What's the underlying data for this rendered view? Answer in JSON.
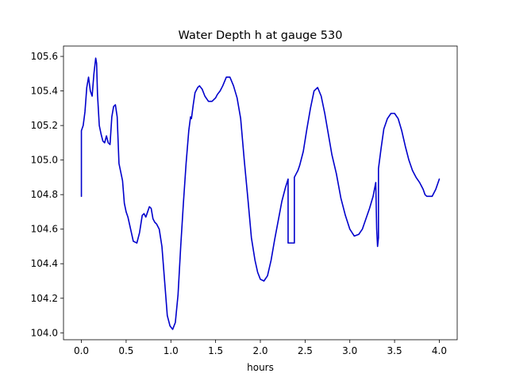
{
  "chart_data": {
    "type": "line",
    "title": "Water Depth h at gauge 530",
    "xlabel": "hours",
    "ylabel": "",
    "xlim": [
      -0.2,
      4.2
    ],
    "ylim": [
      103.96,
      105.66
    ],
    "xticks": [
      "0.0",
      "0.5",
      "1.0",
      "1.5",
      "2.0",
      "2.5",
      "3.0",
      "3.5",
      "4.0"
    ],
    "yticks": [
      "104.0",
      "104.2",
      "104.4",
      "104.6",
      "104.8",
      "105.0",
      "105.2",
      "105.4",
      "105.6"
    ],
    "grid": false,
    "legend": "none",
    "series": [
      {
        "color": "#0000cc",
        "x": [
          0.0,
          0.0,
          0.0,
          0.02,
          0.04,
          0.06,
          0.08,
          0.1,
          0.12,
          0.14,
          0.16,
          0.17,
          0.18,
          0.2,
          0.22,
          0.24,
          0.26,
          0.28,
          0.3,
          0.32,
          0.34,
          0.36,
          0.38,
          0.4,
          0.42,
          0.44,
          0.46,
          0.48,
          0.5,
          0.52,
          0.55,
          0.58,
          0.62,
          0.65,
          0.68,
          0.7,
          0.72,
          0.74,
          0.76,
          0.78,
          0.8,
          0.82,
          0.84,
          0.87,
          0.9,
          0.93,
          0.96,
          0.99,
          1.02,
          1.05,
          1.08,
          1.11,
          1.14,
          1.17,
          1.2,
          1.22,
          1.23,
          1.25,
          1.27,
          1.3,
          1.32,
          1.35,
          1.38,
          1.42,
          1.46,
          1.5,
          1.52,
          1.55,
          1.58,
          1.62,
          1.66,
          1.7,
          1.74,
          1.78,
          1.82,
          1.86,
          1.9,
          1.94,
          1.97,
          2.0,
          2.04,
          2.08,
          2.12,
          2.16,
          2.2,
          2.24,
          2.28,
          2.31,
          2.31,
          2.34,
          2.37,
          2.38,
          2.38,
          2.4,
          2.42,
          2.44,
          2.48,
          2.52,
          2.56,
          2.6,
          2.64,
          2.68,
          2.72,
          2.76,
          2.8,
          2.85,
          2.9,
          2.95,
          3.0,
          3.05,
          3.1,
          3.14,
          3.18,
          3.22,
          3.26,
          3.29,
          3.3,
          3.31,
          3.32,
          3.32,
          3.35,
          3.38,
          3.42,
          3.46,
          3.5,
          3.54,
          3.58,
          3.62,
          3.66,
          3.7,
          3.74,
          3.78,
          3.8,
          3.82,
          3.84,
          3.86,
          3.88,
          3.92,
          3.96,
          4.0
        ],
        "y": [
          104.79,
          104.95,
          105.17,
          105.2,
          105.28,
          105.42,
          105.48,
          105.4,
          105.37,
          105.5,
          105.59,
          105.56,
          105.38,
          105.2,
          105.15,
          105.11,
          105.1,
          105.14,
          105.1,
          105.09,
          105.25,
          105.31,
          105.32,
          105.25,
          104.98,
          104.93,
          104.88,
          104.75,
          104.7,
          104.67,
          104.6,
          104.53,
          104.52,
          104.58,
          104.68,
          104.69,
          104.67,
          104.7,
          104.73,
          104.72,
          104.66,
          104.64,
          104.63,
          104.6,
          104.5,
          104.3,
          104.1,
          104.04,
          104.02,
          104.06,
          104.22,
          104.5,
          104.75,
          104.98,
          105.17,
          105.25,
          105.24,
          105.32,
          105.39,
          105.42,
          105.43,
          105.41,
          105.37,
          105.34,
          105.34,
          105.36,
          105.38,
          105.4,
          105.43,
          105.48,
          105.48,
          105.43,
          105.36,
          105.24,
          105.0,
          104.78,
          104.55,
          104.42,
          104.35,
          104.31,
          104.3,
          104.33,
          104.42,
          104.54,
          104.65,
          104.76,
          104.84,
          104.89,
          104.52,
          104.52,
          104.52,
          104.52,
          104.9,
          104.92,
          104.94,
          104.97,
          105.05,
          105.18,
          105.3,
          105.4,
          105.42,
          105.37,
          105.27,
          105.15,
          105.03,
          104.92,
          104.78,
          104.68,
          104.6,
          104.56,
          104.57,
          104.6,
          104.66,
          104.72,
          104.79,
          104.87,
          104.6,
          104.5,
          104.55,
          104.95,
          105.07,
          105.18,
          105.24,
          105.27,
          105.27,
          105.24,
          105.17,
          105.08,
          105.0,
          104.94,
          104.9,
          104.87,
          104.85,
          104.83,
          104.8,
          104.79,
          104.79,
          104.79,
          104.83,
          104.89
        ]
      }
    ]
  }
}
